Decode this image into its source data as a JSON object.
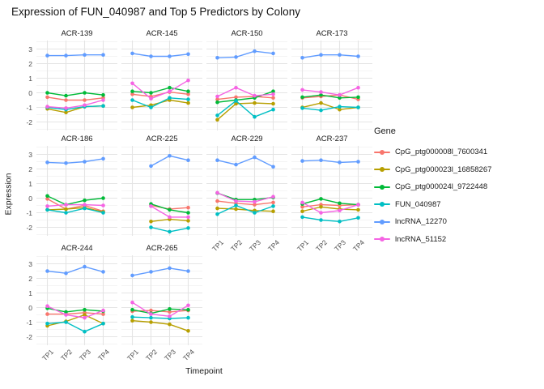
{
  "chart_data": {
    "type": "line",
    "title": "Expression of FUN_040987 and Top 5 Predictors by Colony",
    "xlabel": "Timepoint",
    "ylabel": "Expression",
    "legend_title": "Gene",
    "x_ticks": [
      "TP1",
      "TP2",
      "TP3",
      "TP4"
    ],
    "y_ticks": [
      3,
      2,
      1,
      0,
      -1,
      -2
    ],
    "ylim": [
      -2.6,
      3.6
    ],
    "grid": "major+minor",
    "legend_position": "right",
    "genes": [
      {
        "name": "CpG_ptg000008l_7600341",
        "color": "#F8766D"
      },
      {
        "name": "CpG_ptg000023l_16858267",
        "color": "#B79F00"
      },
      {
        "name": "CpG_ptg000024l_9722448",
        "color": "#00BA38"
      },
      {
        "name": "FUN_040987",
        "color": "#00BFC4"
      },
      {
        "name": "lncRNA_12270",
        "color": "#619CFF"
      },
      {
        "name": "lncRNA_51152",
        "color": "#F564E3"
      }
    ],
    "facets": [
      {
        "colony": "ACR-139",
        "series": {
          "CpG_ptg000008l_7600341": [
            -0.3,
            -0.5,
            -0.5,
            -0.35
          ],
          "CpG_ptg000023l_16858267": [
            -1.1,
            -1.35,
            -0.95,
            -0.9
          ],
          "CpG_ptg000024l_9722448": [
            0.0,
            -0.2,
            0.0,
            -0.15
          ],
          "FUN_040987": [
            -1.0,
            -1.15,
            -0.95,
            -0.9
          ],
          "lncRNA_12270": [
            2.55,
            2.55,
            2.6,
            2.6
          ],
          "lncRNA_51152": [
            -0.95,
            -1.05,
            -0.85,
            -0.5
          ]
        }
      },
      {
        "colony": "ACR-145",
        "series": {
          "CpG_ptg000008l_7600341": [
            -0.1,
            -0.25,
            0.05,
            -0.1
          ],
          "CpG_ptg000023l_16858267": [
            -1.0,
            -0.85,
            -0.5,
            -0.7
          ],
          "CpG_ptg000024l_9722448": [
            0.1,
            0.0,
            0.35,
            0.1
          ],
          "FUN_040987": [
            -0.5,
            -1.0,
            -0.35,
            -0.45
          ],
          "lncRNA_12270": [
            2.7,
            2.5,
            2.5,
            2.65
          ],
          "lncRNA_51152": [
            0.65,
            -0.4,
            0.1,
            0.85
          ]
        }
      },
      {
        "colony": "ACR-150",
        "series": {
          "CpG_ptg000008l_7600341": [
            -0.45,
            -0.3,
            -0.25,
            -0.35
          ],
          "CpG_ptg000023l_16858267": [
            -1.85,
            -0.75,
            -0.7,
            -0.75
          ],
          "CpG_ptg000024l_9722448": [
            -0.65,
            -0.5,
            -0.35,
            0.1
          ],
          "FUN_040987": [
            -1.55,
            -0.55,
            -1.65,
            -1.15
          ],
          "lncRNA_12270": [
            2.4,
            2.45,
            2.85,
            2.7
          ],
          "lncRNA_51152": [
            -0.25,
            0.35,
            -0.2,
            -0.1
          ]
        }
      },
      {
        "colony": "ACR-173",
        "series": {
          "CpG_ptg000008l_7600341": [
            -0.35,
            -0.25,
            -0.15,
            -0.45
          ],
          "CpG_ptg000023l_16858267": [
            -1.0,
            -0.7,
            -1.15,
            -1.0
          ],
          "CpG_ptg000024l_9722448": [
            -0.3,
            -0.15,
            -0.35,
            -0.3
          ],
          "FUN_040987": [
            -1.05,
            -1.2,
            -0.95,
            -1.0
          ],
          "lncRNA_12270": [
            2.4,
            2.6,
            2.6,
            2.5
          ],
          "lncRNA_51152": [
            0.2,
            0.05,
            -0.15,
            0.35
          ]
        }
      },
      {
        "colony": "ACR-186",
        "series": {
          "CpG_ptg000008l_7600341": [
            -0.05,
            -0.75,
            -0.5,
            -0.9
          ],
          "CpG_ptg000023l_16858267": [
            -0.8,
            -0.75,
            -0.65,
            -0.95
          ],
          "CpG_ptg000024l_9722448": [
            0.15,
            -0.45,
            -0.15,
            0.0
          ],
          "FUN_040987": [
            -0.8,
            -1.0,
            -0.7,
            -1.0
          ],
          "lncRNA_12270": [
            2.45,
            2.4,
            2.5,
            2.7
          ],
          "lncRNA_51152": [
            -0.55,
            -0.45,
            -0.45,
            -0.5
          ]
        }
      },
      {
        "colony": "ACR-225",
        "series": {
          "CpG_ptg000008l_7600341": [
            null,
            -0.5,
            -0.75,
            -0.65
          ],
          "CpG_ptg000023l_16858267": [
            null,
            -1.6,
            -1.45,
            -1.55
          ],
          "CpG_ptg000024l_9722448": [
            null,
            -0.4,
            -0.8,
            -1.0
          ],
          "FUN_040987": [
            null,
            -2.0,
            -2.3,
            -2.05
          ],
          "lncRNA_12270": [
            null,
            2.2,
            2.9,
            2.6
          ],
          "lncRNA_51152": [
            null,
            -0.55,
            -1.3,
            -1.3
          ]
        }
      },
      {
        "colony": "ACR-229",
        "series": {
          "CpG_ptg000008l_7600341": [
            -0.2,
            -0.35,
            -0.45,
            -0.3
          ],
          "CpG_ptg000023l_16858267": [
            -0.7,
            -0.75,
            -0.85,
            -0.9
          ],
          "CpG_ptg000024l_9722448": [
            0.35,
            -0.1,
            -0.1,
            0.05
          ],
          "FUN_040987": [
            -1.1,
            -0.5,
            -1.0,
            -0.55
          ],
          "lncRNA_12270": [
            2.6,
            2.3,
            2.8,
            2.15
          ],
          "lncRNA_51152": [
            0.37,
            -0.2,
            -0.25,
            0.1
          ]
        }
      },
      {
        "colony": "ACR-237",
        "series": {
          "CpG_ptg000008l_7600341": [
            -0.6,
            -0.45,
            -0.5,
            -0.45
          ],
          "CpG_ptg000023l_16858267": [
            -0.9,
            -0.6,
            -0.75,
            -0.8
          ],
          "CpG_ptg000024l_9722448": [
            -0.4,
            -0.05,
            -0.35,
            -0.45
          ],
          "FUN_040987": [
            -1.3,
            -1.5,
            -1.6,
            -1.35
          ],
          "lncRNA_12270": [
            2.55,
            2.6,
            2.45,
            2.5
          ],
          "lncRNA_51152": [
            -0.3,
            -1.0,
            -0.85,
            -0.45
          ]
        }
      },
      {
        "colony": "ACR-244",
        "series": {
          "CpG_ptg000008l_7600341": [
            -0.45,
            -0.45,
            -0.35,
            -0.45
          ],
          "CpG_ptg000023l_16858267": [
            -1.25,
            -0.95,
            -0.5,
            -1.1
          ],
          "CpG_ptg000024l_9722448": [
            -0.05,
            -0.3,
            -0.15,
            -0.25
          ],
          "FUN_040987": [
            -1.1,
            -1.0,
            -1.65,
            -1.1
          ],
          "lncRNA_12270": [
            2.5,
            2.35,
            2.8,
            2.45
          ],
          "lncRNA_51152": [
            0.1,
            -0.5,
            -0.7,
            -0.2
          ]
        }
      },
      {
        "colony": "ACR-265",
        "series": {
          "CpG_ptg000008l_7600341": [
            -0.25,
            -0.2,
            -0.3,
            -0.2
          ],
          "CpG_ptg000023l_16858267": [
            -0.9,
            -1.0,
            -1.15,
            -1.6
          ],
          "CpG_ptg000024l_9722448": [
            -0.15,
            -0.4,
            -0.1,
            -0.15
          ],
          "FUN_040987": [
            -0.65,
            -0.7,
            -0.75,
            -0.7
          ],
          "lncRNA_12270": [
            2.2,
            2.45,
            2.7,
            2.5
          ],
          "lncRNA_51152": [
            0.35,
            -0.45,
            -0.6,
            0.15
          ]
        }
      }
    ]
  }
}
